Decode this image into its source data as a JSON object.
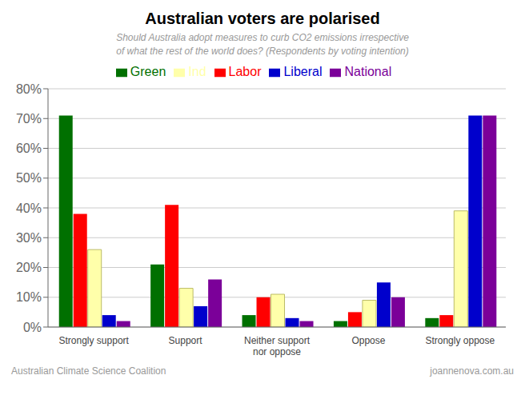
{
  "chart_data": {
    "type": "bar",
    "title": "Australian voters are polarised",
    "subtitle": "Should Australia adopt measures to curb CO2 emissions irrespective\nof what the rest of the world does? (Respondents by voting intention)",
    "categories": [
      "Strongly support",
      "Support",
      "Neither support\nnor oppose",
      "Oppose",
      "Strongly oppose"
    ],
    "series": [
      {
        "name": "Green",
        "color": "#007000",
        "values": [
          71,
          21,
          4,
          2,
          3
        ]
      },
      {
        "name": "Labor",
        "color": "#FF0000",
        "values": [
          38,
          41,
          10,
          5,
          4
        ]
      },
      {
        "name": "Ind",
        "color": "#FFFFAA",
        "values": [
          26,
          13,
          11,
          9,
          39
        ]
      },
      {
        "name": "Liberal",
        "color": "#0000CC",
        "values": [
          4,
          7,
          3,
          15,
          71
        ]
      },
      {
        "name": "National",
        "color": "#7B0099",
        "values": [
          2,
          16,
          2,
          10,
          71
        ]
      }
    ],
    "ylim": [
      0,
      80
    ],
    "yticks": [
      {
        "value": 0,
        "label": "0%"
      },
      {
        "value": 10,
        "label": "10%"
      },
      {
        "value": 20,
        "label": "20%"
      },
      {
        "value": 30,
        "label": "30%"
      },
      {
        "value": 40,
        "label": "40%"
      },
      {
        "value": 50,
        "label": "50%"
      },
      {
        "value": 60,
        "label": "60%"
      },
      {
        "value": 70,
        "label": "70%"
      },
      {
        "value": 80,
        "label": "80%"
      }
    ],
    "grid": true,
    "legend": "top",
    "annotations": [
      "Australian Climate Science Coalition",
      "joannenova.com.au"
    ]
  }
}
